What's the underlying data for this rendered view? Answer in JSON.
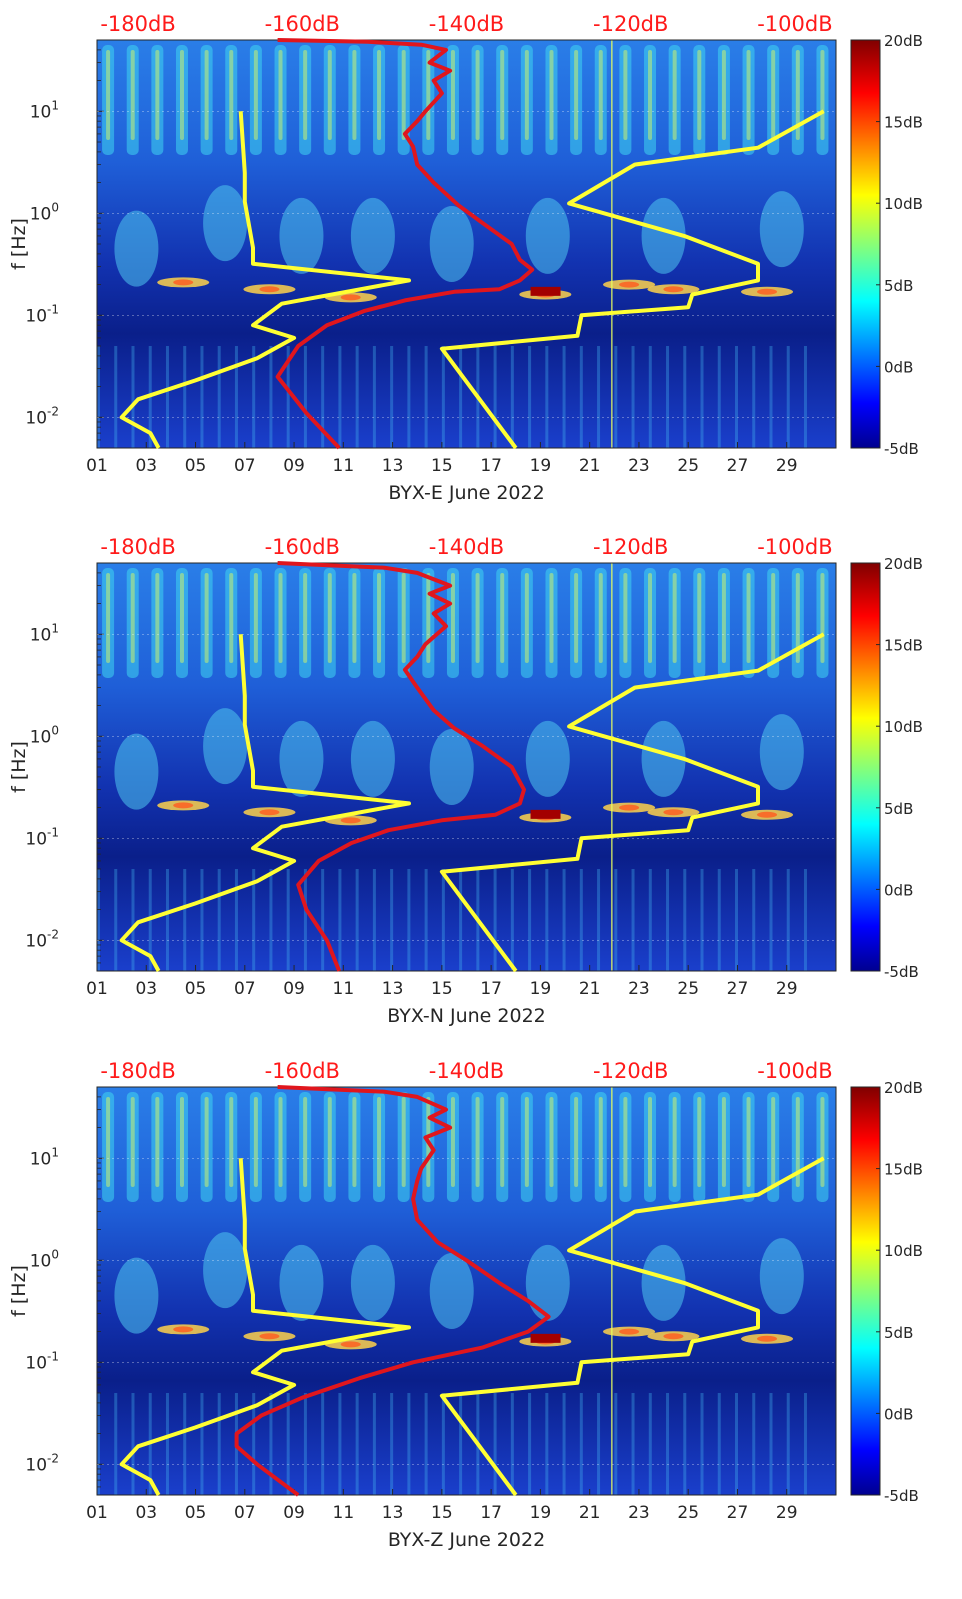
{
  "figure": {
    "xlabel_suffix": "June 2022",
    "shared_ylabel": "f [Hz]",
    "x_tick_labels": [
      "01",
      "03",
      "05",
      "07",
      "09",
      "11",
      "13",
      "15",
      "17",
      "19",
      "21",
      "23",
      "25",
      "27",
      "29"
    ],
    "y_tick_labels": [
      {
        "base": "10",
        "exp": "1"
      },
      {
        "base": "10",
        "exp": "0"
      },
      {
        "base": "10",
        "exp": "-1"
      },
      {
        "base": "10",
        "exp": "-2"
      }
    ],
    "top_tick_labels": [
      "-180dB",
      "-160dB",
      "-140dB",
      "-120dB",
      "-100dB"
    ],
    "colorbar_tick_labels": [
      "20dB",
      "15dB",
      "10dB",
      "5dB",
      "0dB",
      "-5dB"
    ],
    "accent_red": "#ff1a1a",
    "model_line_color": "#ffff33",
    "psd_line_color": "#e0161d"
  },
  "chart_data": [
    {
      "type": "heatmap",
      "title": "",
      "xlabel": "BYX-E June 2022",
      "ylabel": "f [Hz]",
      "x_unit": "day of June 2022",
      "xlim": [
        1,
        31
      ],
      "ylim": [
        0.005,
        50
      ],
      "y_scale": "log",
      "top_axis": {
        "label": "",
        "ticks": [
          -180,
          -160,
          -140,
          -120,
          -100
        ],
        "lim": [
          -185,
          -95
        ]
      },
      "colorbar": {
        "lim": [
          -5,
          20
        ],
        "ticks": [
          20,
          15,
          10,
          5,
          0,
          -5
        ],
        "unit": "dB",
        "colormap": "jet"
      },
      "grid": true,
      "series": [
        {
          "role": "noise-model-low",
          "color": "#ffff33",
          "x_db": [
            -177.5,
            -178.5,
            -182,
            -180,
            -173,
            -165.5,
            -161,
            -166,
            -162.5,
            -147,
            -166,
            -166,
            -167,
            -167,
            -167.5
          ],
          "y_hz": [
            0.005,
            0.007,
            0.01,
            0.015,
            0.023,
            0.038,
            0.06,
            0.08,
            0.13,
            0.22,
            0.32,
            0.46,
            1.3,
            2.5,
            10.0
          ]
        },
        {
          "role": "noise-model-high",
          "color": "#ffff33",
          "x_db": [
            -134,
            -143,
            -126.5,
            -126,
            -113,
            -112.5,
            -104.5,
            -104.5,
            -113.5,
            -127.5,
            -119.5,
            -104.5,
            -96.5
          ],
          "y_hz": [
            0.005,
            0.047,
            0.063,
            0.1,
            0.12,
            0.16,
            0.22,
            0.32,
            0.6,
            1.25,
            3.0,
            4.4,
            10.0
          ]
        },
        {
          "role": "psd",
          "color": "#e0161d",
          "x_db": [
            -155.5,
            -159.5,
            -163,
            -160.5,
            -157,
            -152.5,
            -147.5,
            -141.5,
            -136,
            -133.5,
            -132,
            -133.5,
            -134.5,
            -138,
            -141,
            -144,
            -146,
            -146.5,
            -147.5,
            -146,
            -145,
            -143,
            -144,
            -142,
            -144.5,
            -142.5,
            -145.5,
            -152,
            -163
          ],
          "y_hz": [
            0.005,
            0.011,
            0.025,
            0.05,
            0.08,
            0.11,
            0.14,
            0.17,
            0.18,
            0.22,
            0.28,
            0.35,
            0.5,
            0.8,
            1.2,
            2.0,
            3.0,
            4.5,
            6.0,
            8.0,
            10.0,
            15.0,
            20.0,
            25.0,
            30.0,
            40.0,
            45.0,
            48.0,
            50.0
          ]
        }
      ]
    },
    {
      "type": "heatmap",
      "title": "",
      "xlabel": "BYX-N June 2022",
      "ylabel": "f [Hz]",
      "x_unit": "day of June 2022",
      "xlim": [
        1,
        31
      ],
      "ylim": [
        0.005,
        50
      ],
      "y_scale": "log",
      "top_axis": {
        "label": "",
        "ticks": [
          -180,
          -160,
          -140,
          -120,
          -100
        ],
        "lim": [
          -185,
          -95
        ]
      },
      "colorbar": {
        "lim": [
          -5,
          20
        ],
        "ticks": [
          20,
          15,
          10,
          5,
          0,
          -5
        ],
        "unit": "dB",
        "colormap": "jet"
      },
      "grid": true,
      "series": [
        {
          "role": "noise-model-low",
          "color": "#ffff33",
          "x_db": [
            -177.5,
            -178.5,
            -182,
            -180,
            -173,
            -165.5,
            -161,
            -166,
            -162.5,
            -147,
            -166,
            -166,
            -167,
            -167,
            -167.5
          ],
          "y_hz": [
            0.005,
            0.007,
            0.01,
            0.015,
            0.023,
            0.038,
            0.06,
            0.08,
            0.13,
            0.22,
            0.32,
            0.46,
            1.3,
            2.5,
            10.0
          ]
        },
        {
          "role": "noise-model-high",
          "color": "#ffff33",
          "x_db": [
            -134,
            -143,
            -126.5,
            -126,
            -113,
            -112.5,
            -104.5,
            -104.5,
            -113.5,
            -127.5,
            -119.5,
            -104.5,
            -96.5
          ],
          "y_hz": [
            0.005,
            0.047,
            0.063,
            0.1,
            0.12,
            0.16,
            0.22,
            0.32,
            0.6,
            1.25,
            3.0,
            4.4,
            10.0
          ]
        },
        {
          "role": "psd",
          "color": "#e0161d",
          "x_db": [
            -155.5,
            -157,
            -159.5,
            -160.5,
            -158,
            -154,
            -149.5,
            -143,
            -136.5,
            -133.5,
            -133,
            -134.5,
            -138,
            -141.5,
            -144,
            -146,
            -147.5,
            -146,
            -145,
            -142.5,
            -144,
            -142,
            -144.5,
            -142,
            -146,
            -150,
            -163
          ],
          "y_hz": [
            0.005,
            0.01,
            0.02,
            0.035,
            0.06,
            0.09,
            0.12,
            0.15,
            0.17,
            0.22,
            0.3,
            0.5,
            0.8,
            1.2,
            1.8,
            3.0,
            4.5,
            6.0,
            8.0,
            12.0,
            16.0,
            20.0,
            25.0,
            30.0,
            40.0,
            45.0,
            50.0
          ]
        }
      ]
    },
    {
      "type": "heatmap",
      "title": "",
      "xlabel": "BYX-Z June 2022",
      "ylabel": "f [Hz]",
      "x_unit": "day of June 2022",
      "xlim": [
        1,
        31
      ],
      "ylim": [
        0.005,
        50
      ],
      "y_scale": "log",
      "top_axis": {
        "label": "",
        "ticks": [
          -180,
          -160,
          -140,
          -120,
          -100
        ],
        "lim": [
          -185,
          -95
        ]
      },
      "colorbar": {
        "lim": [
          -5,
          20
        ],
        "ticks": [
          20,
          15,
          10,
          5,
          0,
          -5
        ],
        "unit": "dB",
        "colormap": "jet"
      },
      "grid": true,
      "series": [
        {
          "role": "noise-model-low",
          "color": "#ffff33",
          "x_db": [
            -177.5,
            -178.5,
            -182,
            -180,
            -173,
            -165.5,
            -161,
            -166,
            -162.5,
            -147,
            -166,
            -166,
            -167,
            -167,
            -167.5
          ],
          "y_hz": [
            0.005,
            0.007,
            0.01,
            0.015,
            0.023,
            0.038,
            0.06,
            0.08,
            0.13,
            0.22,
            0.32,
            0.46,
            1.3,
            2.5,
            10.0
          ]
        },
        {
          "role": "noise-model-high",
          "color": "#ffff33",
          "x_db": [
            -134,
            -143,
            -126.5,
            -126,
            -113,
            -112.5,
            -104.5,
            -104.5,
            -113.5,
            -127.5,
            -119.5,
            -104.5,
            -96.5
          ],
          "y_hz": [
            0.005,
            0.047,
            0.063,
            0.1,
            0.12,
            0.16,
            0.22,
            0.32,
            0.6,
            1.25,
            3.0,
            4.4,
            10.0
          ]
        },
        {
          "role": "psd",
          "color": "#e0161d",
          "x_db": [
            -160.5,
            -165.5,
            -168,
            -168,
            -165,
            -160,
            -153,
            -146.5,
            -138,
            -132.5,
            -130,
            -132.5,
            -136,
            -140,
            -143.5,
            -146,
            -146.5,
            -146,
            -145.5,
            -144,
            -145,
            -142,
            -144.5,
            -142.5,
            -146,
            -150,
            -163
          ],
          "y_hz": [
            0.005,
            0.01,
            0.015,
            0.02,
            0.03,
            0.045,
            0.07,
            0.1,
            0.14,
            0.2,
            0.28,
            0.4,
            0.6,
            1.0,
            1.5,
            2.5,
            4.0,
            6.0,
            8.0,
            12.0,
            16.0,
            20.0,
            25.0,
            30.0,
            40.0,
            45.0,
            50.0
          ]
        }
      ]
    }
  ]
}
